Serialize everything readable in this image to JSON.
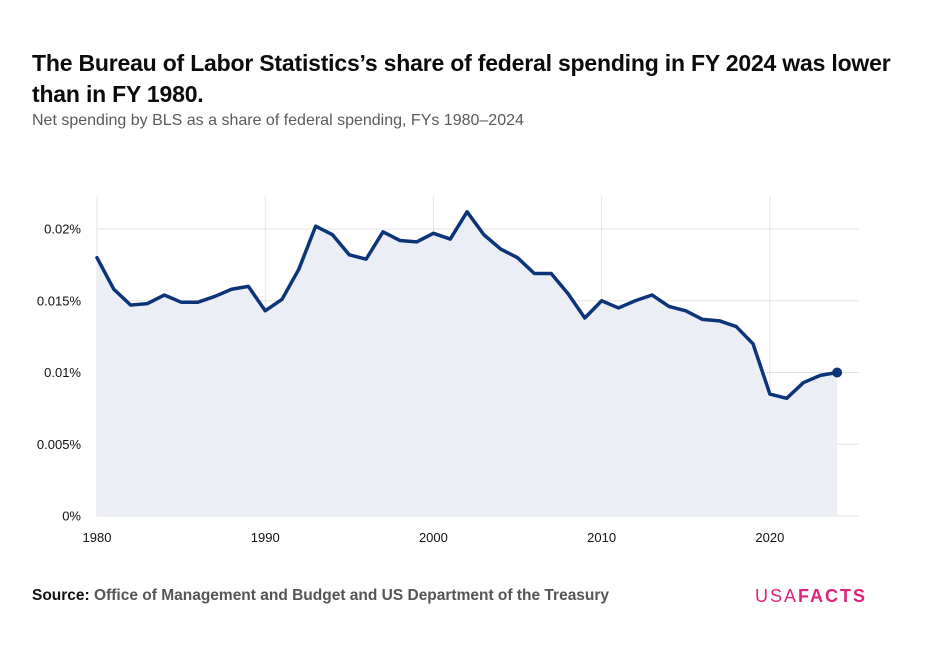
{
  "header": {
    "title": "The Bureau of Labor Statistics’s share of federal spending in FY 2024 was lower than in FY 1980.",
    "subtitle": "Net spending by BLS as a share of federal spending, FYs 1980–2024"
  },
  "footer": {
    "source_label": "Source:",
    "source_text": "Office of Management and Budget and US Department of the Treasury"
  },
  "logo": {
    "usa": "USA",
    "facts": "FACTS"
  },
  "colors": {
    "line": "#0b3479",
    "area": "#eceef6",
    "grid": "#e3e3e3",
    "logo": "#e0237a"
  },
  "chart_data": {
    "type": "area",
    "title": "The Bureau of Labor Statistics’s share of federal spending in FY 2024 was lower than in FY 1980.",
    "subtitle": "Net spending by BLS as a share of federal spending, FYs 1980–2024",
    "xlabel": "",
    "ylabel": "",
    "xlim": [
      1980,
      2025
    ],
    "ylim": [
      0,
      0.022
    ],
    "x_ticks": [
      1980,
      1990,
      2000,
      2010,
      2020
    ],
    "y_ticks": [
      {
        "value": 0,
        "label": "0%"
      },
      {
        "value": 0.005,
        "label": "0.005%"
      },
      {
        "value": 0.01,
        "label": "0.01%"
      },
      {
        "value": 0.015,
        "label": "0.015%"
      },
      {
        "value": 0.02,
        "label": "0.02%"
      }
    ],
    "grid": true,
    "highlight_last_point": true,
    "series": [
      {
        "x": [
          1980,
          1981,
          1982,
          1983,
          1984,
          1985,
          1986,
          1987,
          1988,
          1989,
          1990,
          1991,
          1992,
          1993,
          1994,
          1995,
          1996,
          1997,
          1998,
          1999,
          2000,
          2001,
          2002,
          2003,
          2004,
          2005,
          2006,
          2007,
          2008,
          2009,
          2010,
          2011,
          2012,
          2013,
          2014,
          2015,
          2016,
          2017,
          2018,
          2019,
          2020,
          2021,
          2022,
          2023,
          2024
        ],
        "values": [
          0.018,
          0.0158,
          0.0147,
          0.0148,
          0.0154,
          0.0149,
          0.0149,
          0.0153,
          0.0158,
          0.016,
          0.0143,
          0.0151,
          0.0172,
          0.0202,
          0.0196,
          0.0182,
          0.0179,
          0.0198,
          0.0192,
          0.0191,
          0.0197,
          0.0193,
          0.0212,
          0.0196,
          0.0186,
          0.018,
          0.0169,
          0.0169,
          0.0155,
          0.0138,
          0.015,
          0.0145,
          0.015,
          0.0154,
          0.0146,
          0.0143,
          0.0137,
          0.0136,
          0.0132,
          0.012,
          0.0085,
          0.0082,
          0.0093,
          0.0098,
          0.01
        ]
      }
    ]
  }
}
